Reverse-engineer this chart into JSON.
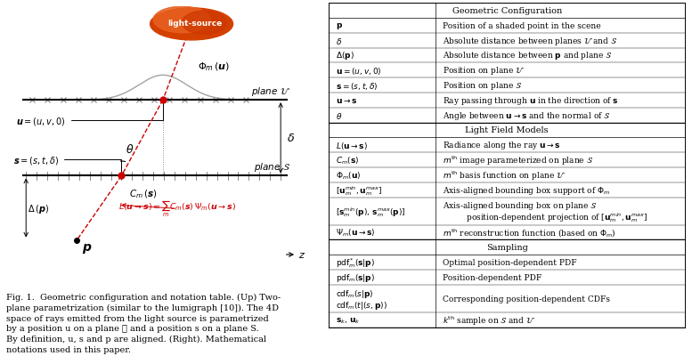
{
  "fig_width": 7.77,
  "fig_height": 4.1,
  "dpi": 100,
  "sections": [
    {
      "header": "Geometric Configuration",
      "rows": [
        [
          "\\mathbf{p}",
          "Position of a shaded point in the scene"
        ],
        [
          "\\delta",
          "Absolute distance between planes $\\mathcal{U}$ and $\\mathcal{S}$"
        ],
        [
          "\\Delta(\\mathbf{p})",
          "Absolute distance between $\\mathbf{p}$ and plane $\\mathcal{S}$"
        ],
        [
          "\\mathbf{u} = (u, v, 0)",
          "Position on plane $\\mathcal{U}$"
        ],
        [
          "\\mathbf{s} = (s, t, \\delta)",
          "Position on plane $\\mathcal{S}$"
        ],
        [
          "\\mathbf{u} \\rightarrow \\mathbf{s}",
          "Ray passing through $\\mathbf{u}$ in the direction of $\\mathbf{s}$"
        ],
        [
          "\\theta",
          "Angle between $\\mathbf{u} \\rightarrow \\mathbf{s}$ and the normal of $\\mathcal{S}$"
        ]
      ]
    },
    {
      "header": "Light Field Models",
      "rows": [
        [
          "L(\\mathbf{u} \\rightarrow \\mathbf{s})",
          "Radiance along the ray $\\mathbf{u} \\rightarrow \\mathbf{s}$"
        ],
        [
          "C_m(\\mathbf{s})",
          "$m^{\\mathrm{th}}$ image parameterized on plane $\\mathcal{S}$"
        ],
        [
          "\\Phi_m(\\mathbf{u})",
          "$m^{\\mathrm{th}}$ basis function on plane $\\mathcal{U}$"
        ],
        [
          "[\\mathbf{u}_m^{min}, \\mathbf{u}_m^{max}]",
          "Axis-aligned bounding box support of $\\Phi_m$"
        ],
        [
          "[\\mathbf{s}_m^{min}(\\mathbf{p}),\\, \\mathbf{s}_m^{max}(\\mathbf{p})]",
          "DOUBLE:Axis-aligned bounding box on plane $\\mathcal{S}$:     position-dependent projection of $[\\mathbf{u}_m^{min}, \\mathbf{u}_m^{max}]$"
        ],
        [
          "\\Psi_m(\\mathbf{u} \\rightarrow \\mathbf{s})",
          "$m^{\\mathrm{th}}$ reconstruction function (based on $\\Phi_m$)"
        ]
      ]
    },
    {
      "header": "Sampling",
      "rows": [
        [
          "\\mathrm{pdf}_m^*(\\mathbf{s}|\\mathbf{p})",
          "Optimal position-dependent PDF"
        ],
        [
          "\\mathrm{pdf}_m(\\mathbf{s}|\\mathbf{p})",
          "Position-dependent PDF"
        ],
        [
          "DOUBLE:\\mathrm{cdf}_m(s|\\mathbf{p}):\\mathrm{cdf}_m(t|(s, \\mathbf{p}))",
          "Corresponding position-dependent CDFs"
        ],
        [
          "\\mathbf{s}_k,\\, \\mathbf{u}_k",
          "$k^{\\mathrm{th}}$ sample on $\\mathcal{S}$ and $\\mathcal{U}$"
        ]
      ]
    }
  ]
}
